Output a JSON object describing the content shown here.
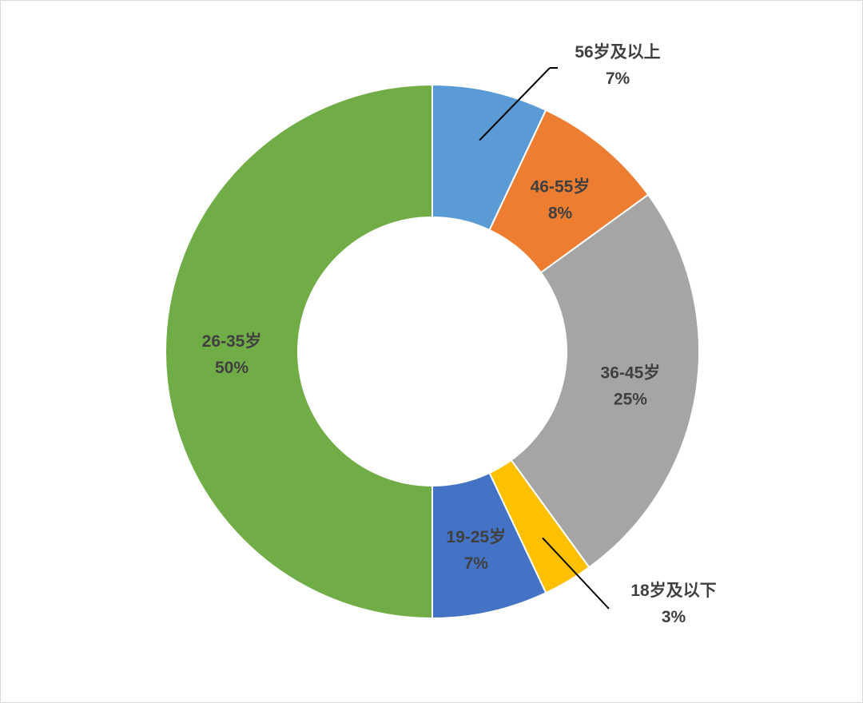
{
  "chart_data": {
    "type": "donut",
    "title": "",
    "legend": "none",
    "slices": [
      {
        "label": "56岁及以上",
        "value": 7,
        "pct_label": "7%",
        "color": "#5b9bd5",
        "label_placement": "outside-top"
      },
      {
        "label": "46-55岁",
        "value": 8,
        "pct_label": "8%",
        "color": "#ed7d31",
        "label_placement": "inside"
      },
      {
        "label": "36-45岁",
        "value": 25,
        "pct_label": "25%",
        "color": "#a5a5a5",
        "label_placement": "inside"
      },
      {
        "label": "18岁及以下",
        "value": 3,
        "pct_label": "3%",
        "color": "#ffc000",
        "label_placement": "outside-bottom"
      },
      {
        "label": "19-25岁",
        "value": 7,
        "pct_label": "7%",
        "color": "#4472c4",
        "label_placement": "inside"
      },
      {
        "label": "26-35岁",
        "value": 50,
        "pct_label": "50%",
        "color": "#70ad47",
        "label_placement": "inside"
      }
    ]
  }
}
